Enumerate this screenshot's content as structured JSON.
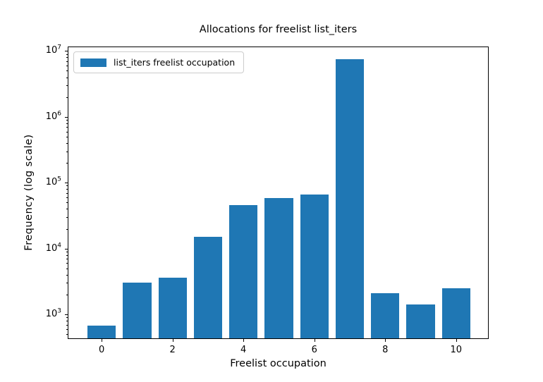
{
  "chart_data": {
    "type": "bar",
    "title": "Allocations for freelist list_iters",
    "xlabel": "Freelist occupation",
    "ylabel": "Frequency (log scale)",
    "legend": "list_iters freelist occupation",
    "legend_position": "upper left",
    "bar_color": "#1f77b4",
    "bar_width": 0.8,
    "grid": false,
    "yscale": "log",
    "x": [
      0,
      1,
      2,
      3,
      4,
      5,
      6,
      7,
      8,
      9,
      10
    ],
    "values": [
      650,
      2900,
      3400,
      14500,
      44000,
      56000,
      63000,
      7200000,
      2000,
      1350,
      2350
    ],
    "xlim": [
      -0.94,
      10.94
    ],
    "ylim": [
      412,
      11400000
    ],
    "xticks": [
      0,
      2,
      4,
      6,
      8,
      10
    ],
    "xtick_labels": [
      "0",
      "2",
      "4",
      "6",
      "8",
      "10"
    ],
    "ytick_base": "10",
    "ytick_exponents": [
      3,
      4,
      5,
      6,
      7
    ],
    "spine_color": "#000000",
    "background_color": "#ffffff"
  }
}
